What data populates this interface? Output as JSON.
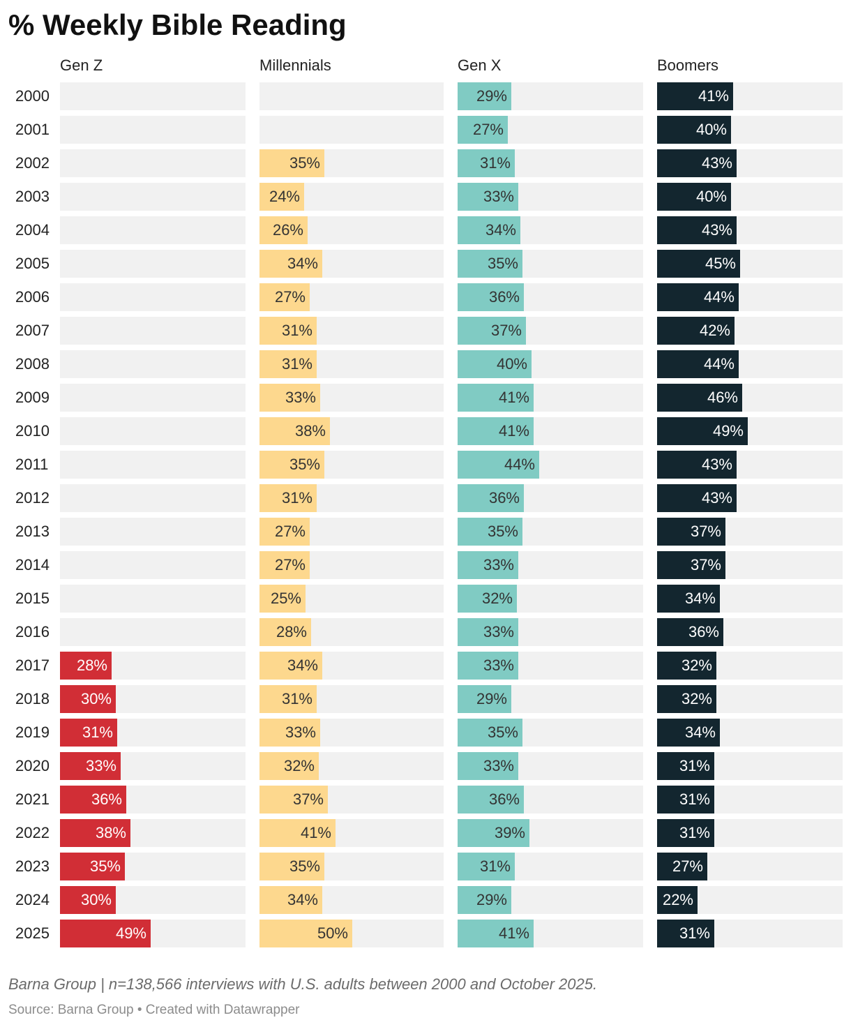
{
  "chart_data": {
    "type": "bar",
    "orientation": "horizontal",
    "title": "% Weekly Bible Reading",
    "categories": [
      "2000",
      "2001",
      "2002",
      "2003",
      "2004",
      "2005",
      "2006",
      "2007",
      "2008",
      "2009",
      "2010",
      "2011",
      "2012",
      "2013",
      "2014",
      "2015",
      "2016",
      "2017",
      "2018",
      "2019",
      "2020",
      "2021",
      "2022",
      "2023",
      "2024",
      "2025"
    ],
    "value_max": 100,
    "value_suffix": "%",
    "series": [
      {
        "name": "Gen Z",
        "color": "#d12e36",
        "label_color": "#ffffff",
        "values": [
          null,
          null,
          null,
          null,
          null,
          null,
          null,
          null,
          null,
          null,
          null,
          null,
          null,
          null,
          null,
          null,
          null,
          28,
          30,
          31,
          33,
          36,
          38,
          35,
          30,
          49
        ]
      },
      {
        "name": "Millennials",
        "color": "#fdd88e",
        "label_color": "#333333",
        "values": [
          null,
          null,
          35,
          24,
          26,
          34,
          27,
          31,
          31,
          33,
          38,
          35,
          31,
          27,
          27,
          25,
          28,
          34,
          31,
          33,
          32,
          37,
          41,
          35,
          34,
          50
        ]
      },
      {
        "name": "Gen X",
        "color": "#80cbc3",
        "label_color": "#333333",
        "values": [
          29,
          27,
          31,
          33,
          34,
          35,
          36,
          37,
          40,
          41,
          41,
          44,
          36,
          35,
          33,
          32,
          33,
          33,
          29,
          35,
          33,
          36,
          39,
          31,
          29,
          41
        ]
      },
      {
        "name": "Boomers",
        "color": "#13262f",
        "label_color": "#ffffff",
        "values": [
          41,
          40,
          43,
          40,
          43,
          45,
          44,
          42,
          44,
          46,
          49,
          43,
          43,
          37,
          37,
          34,
          36,
          32,
          32,
          34,
          31,
          31,
          31,
          27,
          22,
          31
        ]
      }
    ]
  },
  "footer": {
    "note": "Barna Group | n=138,566 interviews with U.S. adults between 2000 and October 2025.",
    "source": "Source: Barna Group • Created with Datawrapper"
  }
}
